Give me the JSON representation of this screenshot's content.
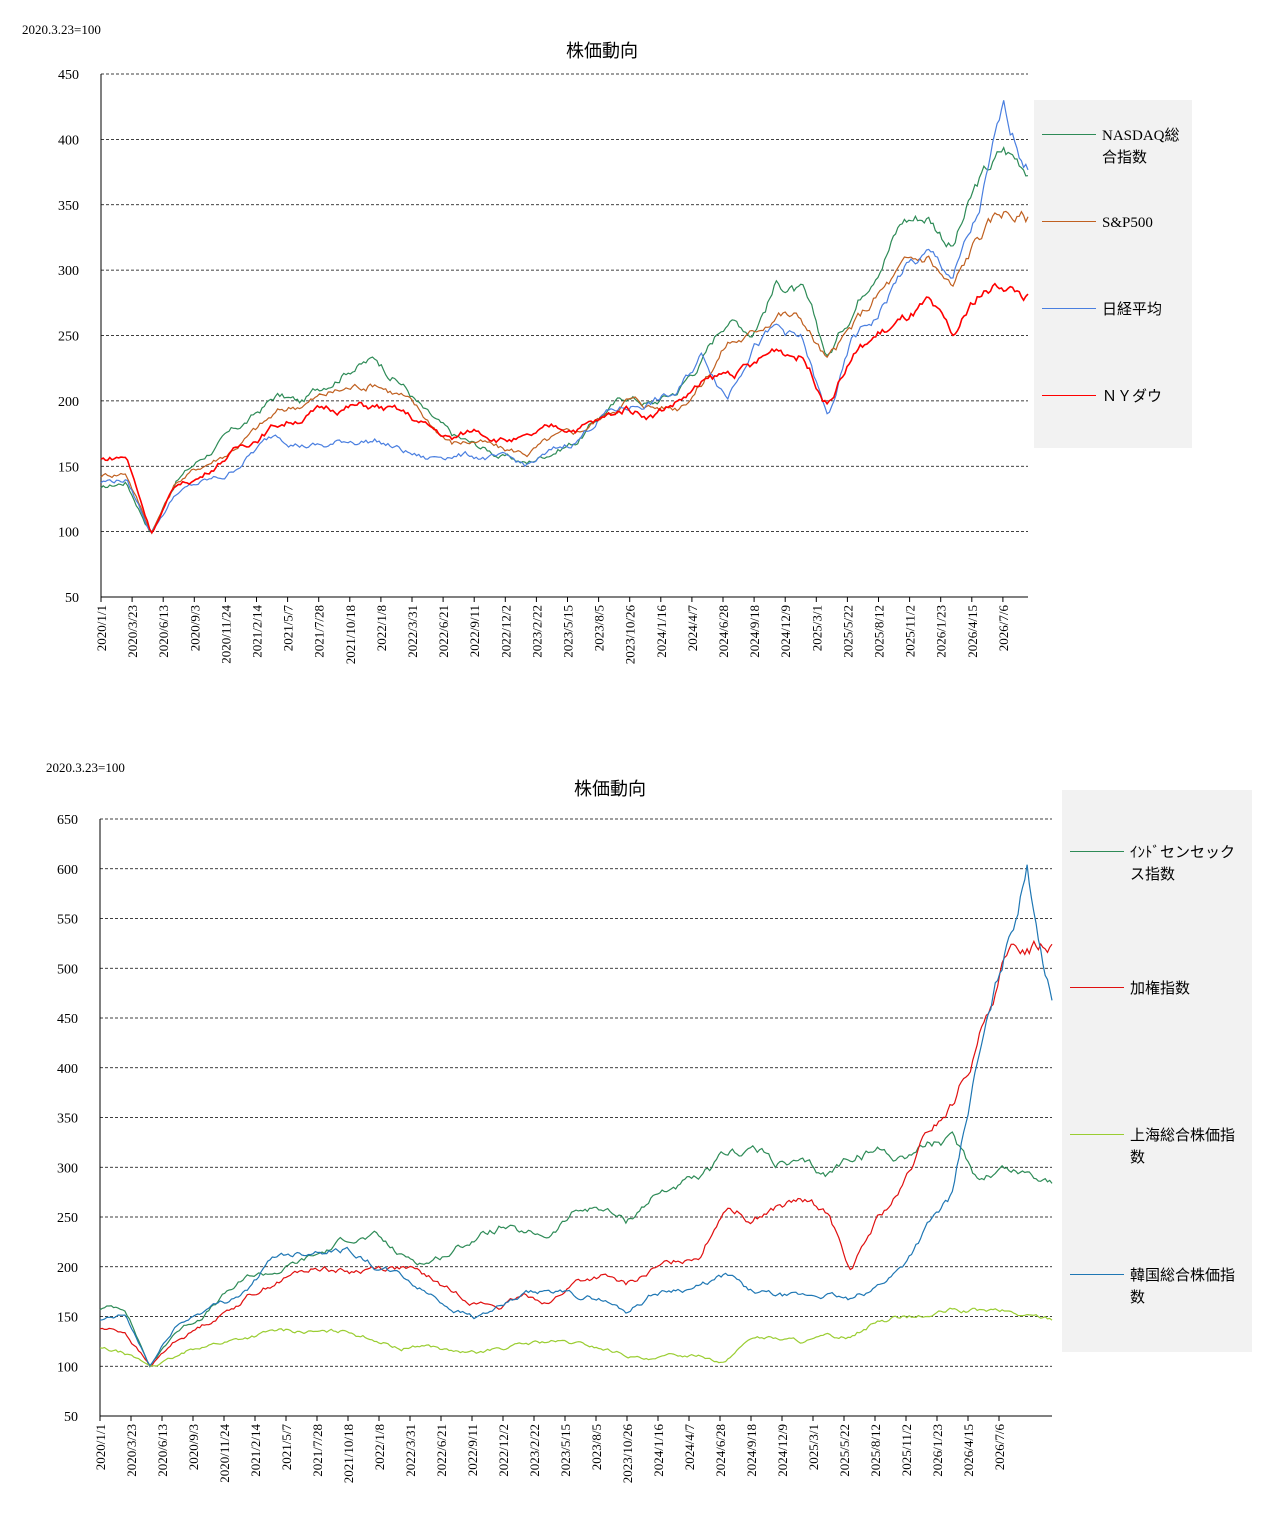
{
  "chart_data": [
    {
      "type": "line",
      "note": "2020.3.23=100",
      "title": "株価動向",
      "ylim": [
        50,
        450
      ],
      "yticks": [
        50,
        100,
        150,
        200,
        250,
        300,
        350,
        400,
        450
      ],
      "grid": true,
      "legend_position": "right",
      "xtick_labels": [
        "2020/1/1",
        "2020/3/23",
        "2020/6/13",
        "2020/9/3",
        "2020/11/24",
        "2021/2/14",
        "2021/5/7",
        "2021/7/28",
        "2021/10/18",
        "2022/1/8",
        "2022/3/31",
        "2022/6/21",
        "2022/9/11",
        "2022/12/2",
        "2023/2/22",
        "2023/5/15",
        "2023/8/5",
        "2023/10/26",
        "2024/1/16",
        "2024/4/7",
        "2024/6/28",
        "2024/9/18",
        "2024/12/9",
        "2025/3/1",
        "2025/5/22",
        "2025/8/12",
        "2025/11/2",
        "2026/1/23",
        "2026/4/15",
        "2026/7/6"
      ],
      "series": [
        {
          "name": "NASDAQ総合指数",
          "color": "#2e8b57",
          "values": [
            132,
            138,
            100,
            140,
            156,
            172,
            186,
            204,
            198,
            214,
            228,
            232,
            215,
            190,
            172,
            165,
            158,
            152,
            162,
            170,
            190,
            204,
            198,
            208,
            232,
            265,
            255,
            292,
            282,
            232,
            270,
            308,
            340,
            343,
            320,
            365,
            390,
            380
          ]
        },
        {
          "name": "S&P500",
          "color": "#c06020",
          "values": [
            143,
            146,
            100,
            138,
            150,
            160,
            175,
            190,
            198,
            205,
            210,
            215,
            205,
            185,
            168,
            170,
            162,
            160,
            170,
            175,
            188,
            202,
            196,
            196,
            215,
            245,
            250,
            270,
            262,
            230,
            255,
            280,
            300,
            310,
            285,
            325,
            345,
            340
          ]
        },
        {
          "name": "日経平均",
          "color": "#4a7fe0",
          "values": [
            138,
            140,
            100,
            130,
            137,
            142,
            160,
            175,
            168,
            165,
            170,
            170,
            162,
            155,
            160,
            158,
            155,
            150,
            160,
            170,
            190,
            195,
            200,
            205,
            235,
            205,
            245,
            255,
            245,
            185,
            245,
            265,
            300,
            310,
            295,
            340,
            420,
            380
          ]
        },
        {
          "name": "ＮＹダウ",
          "color": "#ff0000",
          "values": [
            155,
            158,
            100,
            135,
            142,
            158,
            170,
            182,
            188,
            194,
            196,
            195,
            190,
            180,
            170,
            178,
            172,
            170,
            178,
            180,
            185,
            195,
            190,
            200,
            212,
            220,
            225,
            240,
            235,
            200,
            235,
            250,
            260,
            272,
            245,
            280,
            290,
            280
          ]
        }
      ]
    },
    {
      "type": "line",
      "note": "2020.3.23=100",
      "title": "株価動向",
      "ylim": [
        50,
        650
      ],
      "yticks": [
        50,
        100,
        150,
        200,
        250,
        300,
        350,
        400,
        450,
        500,
        550,
        600,
        650
      ],
      "grid": true,
      "legend_position": "right",
      "xtick_labels": [
        "2020/1/1",
        "2020/3/23",
        "2020/6/13",
        "2020/9/3",
        "2020/11/24",
        "2021/2/14",
        "2021/5/7",
        "2021/7/28",
        "2021/10/18",
        "2022/1/8",
        "2022/3/31",
        "2022/6/21",
        "2022/9/11",
        "2022/12/2",
        "2023/2/22",
        "2023/5/15",
        "2023/8/5",
        "2023/10/26",
        "2024/1/16",
        "2024/4/7",
        "2024/6/28",
        "2024/9/18",
        "2024/12/9",
        "2025/3/1",
        "2025/5/22",
        "2025/8/12",
        "2025/11/2",
        "2026/1/23",
        "2026/4/15",
        "2026/7/6"
      ],
      "series": [
        {
          "name": "ｲﾝﾄﾞセンセックス指数",
          "color": "#2e8b57",
          "values": [
            158,
            160,
            100,
            135,
            150,
            172,
            190,
            195,
            205,
            215,
            230,
            230,
            210,
            205,
            215,
            230,
            240,
            230,
            232,
            255,
            260,
            245,
            270,
            282,
            285,
            310,
            320,
            305,
            300,
            290,
            312,
            318,
            312,
            325,
            325,
            290,
            300,
            295,
            288
          ]
        },
        {
          "name": "加権指数",
          "color": "#e01010",
          "values": [
            138,
            135,
            100,
            125,
            140,
            155,
            172,
            185,
            195,
            200,
            195,
            200,
            200,
            190,
            175,
            165,
            160,
            170,
            165,
            185,
            190,
            180,
            195,
            205,
            215,
            265,
            250,
            260,
            265,
            255,
            195,
            245,
            275,
            330,
            360,
            420,
            500,
            520,
            530
          ]
        },
        {
          "name": "上海総合株価指数",
          "color": "#9acd32",
          "values": [
            118,
            112,
            100,
            108,
            120,
            125,
            130,
            135,
            135,
            133,
            135,
            128,
            118,
            122,
            115,
            112,
            118,
            122,
            125,
            122,
            118,
            112,
            105,
            110,
            112,
            105,
            130,
            128,
            125,
            128,
            130,
            145,
            150,
            150,
            155,
            155,
            155,
            150,
            148
          ]
        },
        {
          "name": "韓国総合株価指数",
          "color": "#1f77b4",
          "values": [
            145,
            150,
            100,
            140,
            155,
            165,
            180,
            210,
            215,
            220,
            218,
            200,
            190,
            175,
            160,
            150,
            160,
            170,
            175,
            170,
            168,
            155,
            172,
            178,
            180,
            190,
            175,
            170,
            168,
            172,
            165,
            180,
            200,
            240,
            270,
            400,
            500,
            600,
            470
          ]
        }
      ]
    }
  ]
}
